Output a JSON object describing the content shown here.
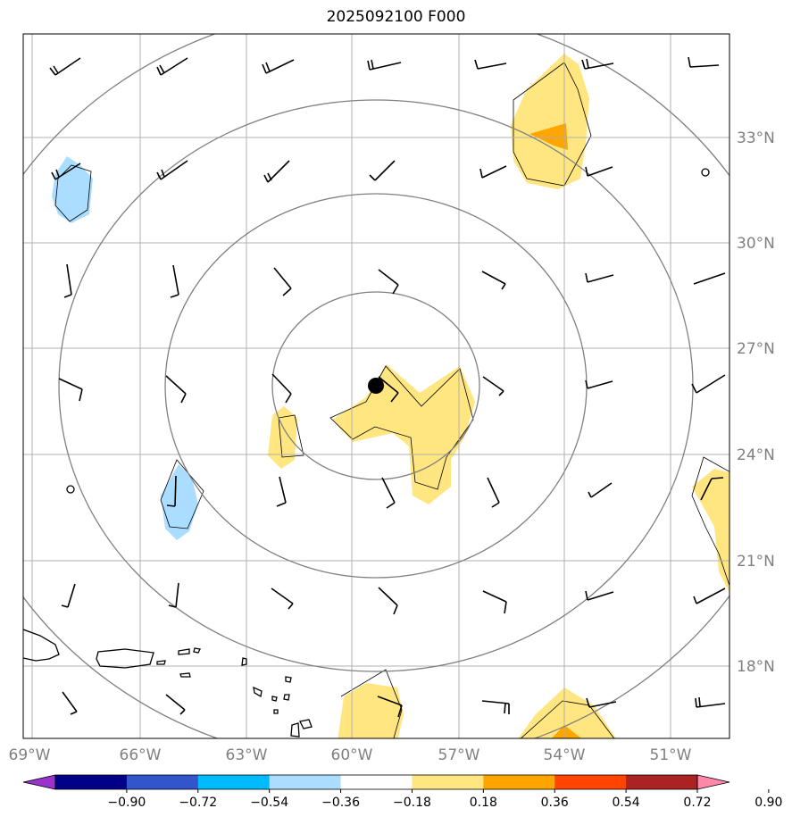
{
  "title": "2025092100 F000",
  "map": {
    "lon_labels": [
      "69°W",
      "66°W",
      "63°W",
      "60°W",
      "57°W",
      "54°W",
      "51°W"
    ],
    "lat_labels": [
      "33°N",
      "30°N",
      "27°N",
      "24°N",
      "21°N",
      "18°N"
    ],
    "storm_center": {
      "lon": -59.7,
      "lat": 25.9
    }
  },
  "colorbar": {
    "ticks": [
      "−0.90",
      "−0.72",
      "−0.54",
      "−0.36",
      "−0.18",
      "0.18",
      "0.36",
      "0.54",
      "0.72",
      "0.90"
    ],
    "colors": [
      "#9933cc",
      "#000088",
      "#3355cc",
      "#00bbff",
      "#aaddff",
      "#ffffff",
      "#ffe680",
      "#ffa500",
      "#ff4400",
      "#aa2222",
      "#ff88aa"
    ]
  }
}
